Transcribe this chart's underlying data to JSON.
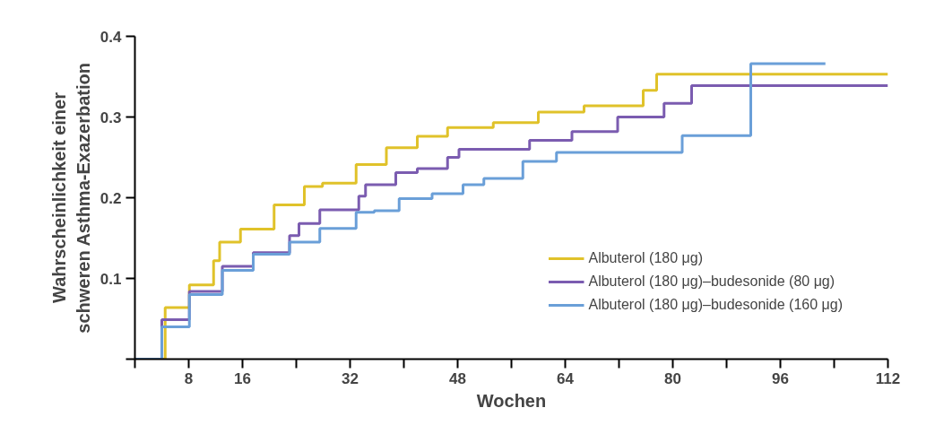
{
  "chart_data": {
    "type": "step",
    "xlabel": "Wochen",
    "ylabel": "Wahrscheinlichkeit einer\nschweren Asthma-Exazerbation",
    "xlim": [
      0,
      112
    ],
    "ylim": [
      0,
      0.4
    ],
    "xticks": [
      {
        "value": 0,
        "label": null
      },
      8,
      16,
      {
        "value": 24,
        "label": null
      },
      32,
      {
        "value": 40,
        "label": null
      },
      48,
      {
        "value": 56,
        "label": null
      },
      64,
      {
        "value": 72,
        "label": null
      },
      80,
      {
        "value": 88,
        "label": null
      },
      96,
      {
        "value": 104,
        "label": null
      },
      112
    ],
    "yticks": [
      {
        "value": 0,
        "label": null
      },
      0.1,
      0.2,
      0.3,
      0.4
    ],
    "grid": false,
    "legend": "bottom right",
    "line_style": "solid",
    "marker": "none",
    "series": [
      {
        "name": "Albuterol (180 μg)",
        "color": "#e0c22a",
        "x": [
          0,
          4.5,
          8.1,
          11.7,
          12.6,
          15.7,
          20.7,
          25.2,
          27.9,
          32.9,
          37.4,
          42,
          46.5,
          53.3,
          60,
          66.8,
          75.6,
          77.6,
          112
        ],
        "values": [
          0,
          0.064,
          0.092,
          0.122,
          0.145,
          0.161,
          0.191,
          0.214,
          0.218,
          0.241,
          0.262,
          0.276,
          0.287,
          0.293,
          0.306,
          0.314,
          0.333,
          0.353,
          0.353
        ]
      },
      {
        "name": "Albuterol (180 μg)–budesonide (80 μg)",
        "color": "#7b5cb0",
        "x": [
          0,
          4,
          8.1,
          13,
          17.6,
          23,
          24.4,
          27.5,
          33.3,
          34.3,
          38.8,
          42,
          46.5,
          48.2,
          58.7,
          65,
          71.8,
          78.7,
          82.8,
          112
        ],
        "values": [
          0,
          0.049,
          0.084,
          0.115,
          0.132,
          0.153,
          0.168,
          0.185,
          0.202,
          0.216,
          0.231,
          0.236,
          0.25,
          0.26,
          0.271,
          0.282,
          0.3,
          0.317,
          0.339,
          0.339
        ]
      },
      {
        "name": "Albuterol (180 μg)–budesonide (160 μg)",
        "color": "#6a9fd8",
        "x": [
          0,
          4,
          8.1,
          13,
          17.6,
          23,
          27.5,
          32.9,
          35.6,
          39.3,
          44.2,
          48.8,
          51.9,
          57.7,
          62.7,
          81.4,
          91.6,
          102.7
        ],
        "values": [
          0,
          0.04,
          0.08,
          0.11,
          0.13,
          0.145,
          0.162,
          0.182,
          0.184,
          0.199,
          0.205,
          0.216,
          0.224,
          0.245,
          0.256,
          0.277,
          0.366,
          0.366
        ]
      }
    ]
  }
}
